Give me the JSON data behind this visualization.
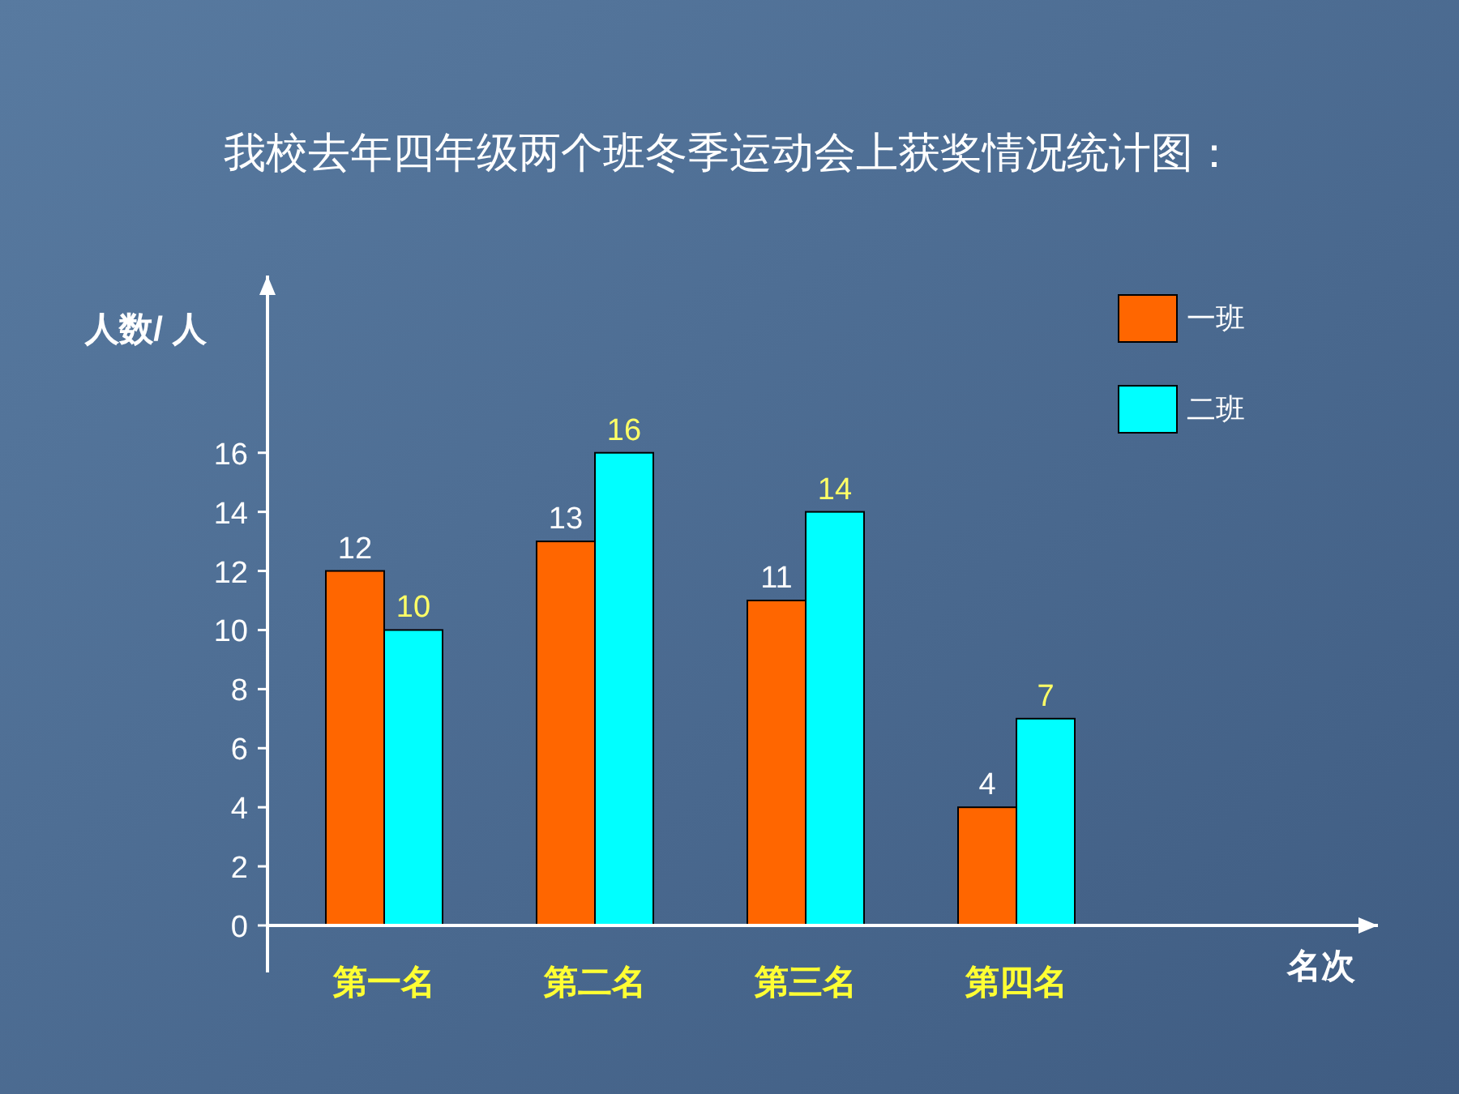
{
  "chart_data": {
    "type": "bar",
    "title": "我校去年四年级两个班冬季运动会上获奖情况统计图：",
    "ylabel": "人数/ 人",
    "xlabel": "名次",
    "categories": [
      "第一名",
      "第二名",
      "第三名",
      "第四名"
    ],
    "series": [
      {
        "name": "一班",
        "color": "#ff6600",
        "values": [
          12,
          13,
          11,
          4
        ]
      },
      {
        "name": "二班",
        "color": "#00ffff",
        "values": [
          10,
          16,
          14,
          7
        ]
      }
    ],
    "ylim": [
      0,
      22
    ],
    "yticks": [
      0,
      2,
      4,
      6,
      8,
      10,
      12,
      14,
      16
    ],
    "data_labels": true,
    "legend": "top right",
    "grid": false
  }
}
